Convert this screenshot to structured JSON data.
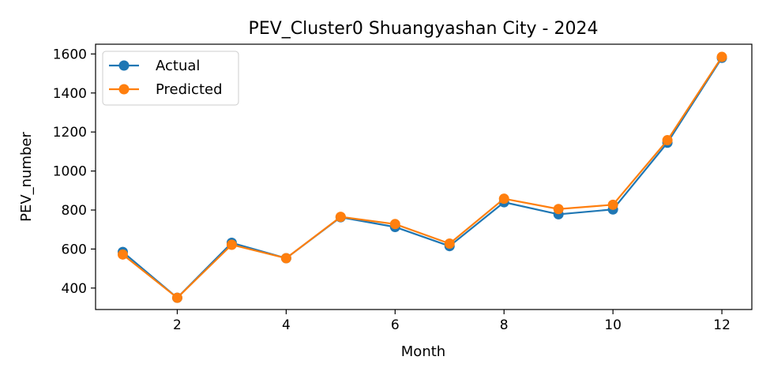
{
  "chart_data": {
    "type": "line",
    "title": "PEV_Cluster0 Shuangyashan City - 2024",
    "xlabel": "Month",
    "ylabel": "PEV_number",
    "x": [
      1,
      2,
      3,
      4,
      5,
      6,
      7,
      8,
      9,
      10,
      11,
      12
    ],
    "xlim": [
      0.5,
      12.55
    ],
    "ylim": [
      290,
      1650
    ],
    "xticks": [
      2,
      4,
      6,
      8,
      10,
      12
    ],
    "yticks": [
      400,
      600,
      800,
      1000,
      1200,
      1400,
      1600
    ],
    "grid": false,
    "legend_position": "top-left",
    "series": [
      {
        "name": "Actual",
        "color": "#1f77b4",
        "marker": "circle",
        "values": [
          585,
          350,
          632,
          553,
          763,
          713,
          615,
          840,
          778,
          803,
          1145,
          1580
        ]
      },
      {
        "name": "Predicted",
        "color": "#ff7f0e",
        "marker": "circle",
        "values": [
          572,
          350,
          622,
          553,
          765,
          728,
          628,
          858,
          805,
          827,
          1158,
          1585
        ]
      }
    ]
  }
}
